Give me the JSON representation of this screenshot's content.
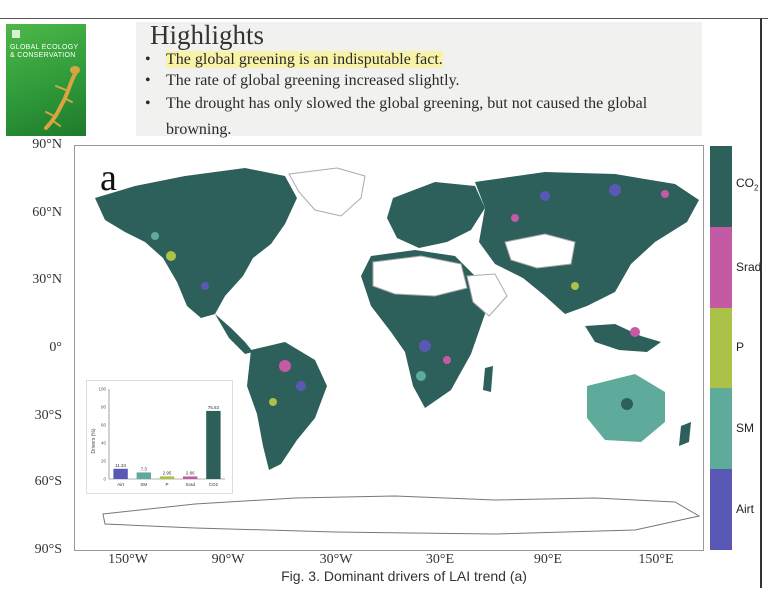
{
  "cover": {
    "title": "GLOBAL ECOLOGY & CONSERVATION",
    "bg_color": "#3aa83f"
  },
  "highlights": {
    "title": "Highlights",
    "bullet": "•",
    "items": [
      "The global greening is an indisputable fact.",
      "The rate of global greening increased slightly.",
      "The drought has only slowed the global greening, but not caused the global browning."
    ]
  },
  "map": {
    "panel_letter": "a",
    "y_ticks": [
      "90°N",
      "60°N",
      "30°N",
      "0°",
      "30°S",
      "60°S",
      "90°S"
    ],
    "x_ticks": [
      "150°W",
      "90°W",
      "30°W",
      "30°E",
      "90°E",
      "150°E"
    ],
    "legend": [
      {
        "label": "CO",
        "sub": "2",
        "color": "#2d5f5b"
      },
      {
        "label": "Srad",
        "sub": "",
        "color": "#c45aa3"
      },
      {
        "label": "P",
        "sub": "",
        "color": "#a9c247"
      },
      {
        "label": "SM",
        "sub": "",
        "color": "#5fab9b"
      },
      {
        "label": "Airt",
        "sub": "",
        "color": "#5a58b5"
      }
    ]
  },
  "chart_data": {
    "type": "bar",
    "categories": [
      "Airt",
      "SM",
      "P",
      "Srad",
      "CO2"
    ],
    "values": [
      11.34,
      7.3,
      2.95,
      2.86,
      75.63
    ],
    "value_labels": [
      "11.34",
      "7.3",
      "2.95",
      "2.86",
      "75.63"
    ],
    "colors": [
      "#5a58b5",
      "#5fab9b",
      "#a9c247",
      "#c45aa3",
      "#2d5f5b"
    ],
    "ylabel": "Drivers (%)",
    "ylim": [
      0,
      100
    ],
    "yticks": [
      "0",
      "20",
      "40",
      "60",
      "80",
      "100"
    ]
  },
  "caption": {
    "text": "Fig. 3. Dominant drivers of LAI trend (a)"
  }
}
